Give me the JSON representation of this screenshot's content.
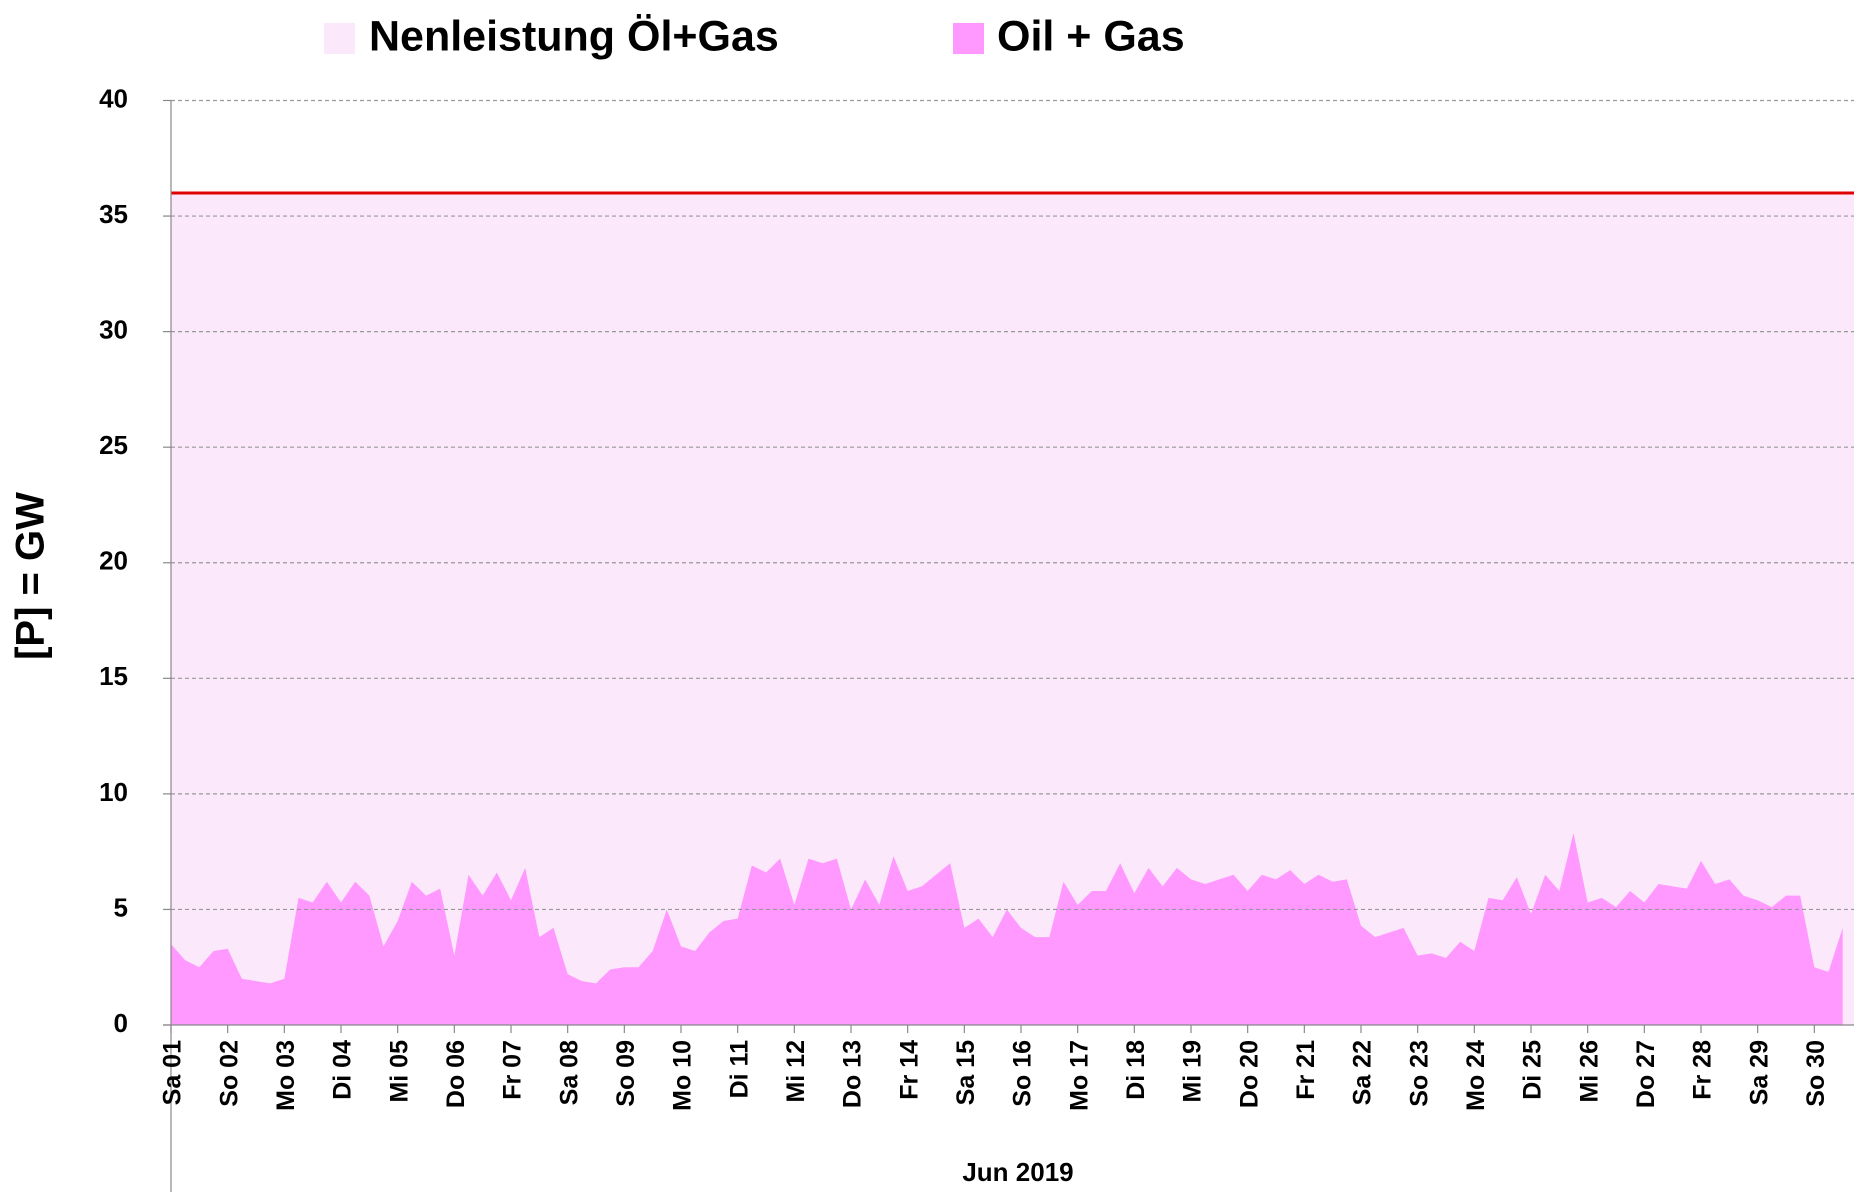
{
  "chart_data": {
    "type": "area",
    "x_label": "Jun 2019",
    "y_label": "[P]  = GW",
    "xlim": [
      0,
      29.7
    ],
    "ylim": [
      0,
      40
    ],
    "yticks": [
      0,
      5,
      10,
      15,
      20,
      25,
      30,
      35,
      40
    ],
    "xticks": [
      {
        "value": 0,
        "label": "Sa 01"
      },
      {
        "value": 1,
        "label": "So 02"
      },
      {
        "value": 2,
        "label": "Mo 03"
      },
      {
        "value": 3,
        "label": "Di 04"
      },
      {
        "value": 4,
        "label": "Mi 05"
      },
      {
        "value": 5,
        "label": "Do 06"
      },
      {
        "value": 6,
        "label": "Fr 07"
      },
      {
        "value": 7,
        "label": "Sa 08"
      },
      {
        "value": 8,
        "label": "So 09"
      },
      {
        "value": 9,
        "label": "Mo 10"
      },
      {
        "value": 10,
        "label": "Di 11"
      },
      {
        "value": 11,
        "label": "Mi 12"
      },
      {
        "value": 12,
        "label": "Do 13"
      },
      {
        "value": 13,
        "label": "Fr 14"
      },
      {
        "value": 14,
        "label": "Sa 15"
      },
      {
        "value": 15,
        "label": "So 16"
      },
      {
        "value": 16,
        "label": "Mo 17"
      },
      {
        "value": 17,
        "label": "Di 18"
      },
      {
        "value": 18,
        "label": "Mi 19"
      },
      {
        "value": 19,
        "label": "Do 20"
      },
      {
        "value": 20,
        "label": "Fr 21"
      },
      {
        "value": 21,
        "label": "Sa 22"
      },
      {
        "value": 22,
        "label": "So 23"
      },
      {
        "value": 23,
        "label": "Mo 24"
      },
      {
        "value": 24,
        "label": "Di 25"
      },
      {
        "value": 25,
        "label": "Mi 26"
      },
      {
        "value": 26,
        "label": "Do 27"
      },
      {
        "value": 27,
        "label": "Fr 28"
      },
      {
        "value": 28,
        "label": "Sa 29"
      },
      {
        "value": 29,
        "label": "So 30"
      }
    ],
    "grid": true,
    "x": [
      0,
      0.25,
      0.5,
      0.75,
      1,
      1.25,
      1.5,
      1.75,
      2,
      2.25,
      2.5,
      2.75,
      3,
      3.25,
      3.5,
      3.75,
      4,
      4.25,
      4.5,
      4.75,
      5,
      5.25,
      5.5,
      5.75,
      6,
      6.25,
      6.5,
      6.75,
      7,
      7.25,
      7.5,
      7.75,
      8,
      8.25,
      8.5,
      8.75,
      9,
      9.25,
      9.5,
      9.75,
      10,
      10.25,
      10.5,
      10.75,
      11,
      11.25,
      11.5,
      11.75,
      12,
      12.25,
      12.5,
      12.75,
      13,
      13.25,
      13.5,
      13.75,
      14,
      14.25,
      14.5,
      14.75,
      15,
      15.25,
      15.5,
      15.75,
      16,
      16.25,
      16.5,
      16.75,
      17,
      17.25,
      17.5,
      17.75,
      18,
      18.25,
      18.5,
      18.75,
      19,
      19.25,
      19.5,
      19.75,
      20,
      20.25,
      20.5,
      20.75,
      21,
      21.25,
      21.5,
      21.75,
      22,
      22.25,
      22.5,
      22.75,
      23,
      23.25,
      23.5,
      23.75,
      24,
      24.25,
      24.5,
      24.75,
      25,
      25.25,
      25.5,
      25.75,
      26,
      26.25,
      26.5,
      26.75,
      27,
      27.25,
      27.5,
      27.75,
      28,
      28.25,
      28.5,
      28.75,
      29,
      29.25,
      29.5
    ],
    "series": [
      {
        "name": "Nenleistung Öl+Gas",
        "color": "#fce8fb",
        "line_color": "#e00000",
        "x": [
          0,
          29.7
        ],
        "values": [
          36,
          36
        ]
      },
      {
        "name": "Oil + Gas",
        "color": "#ff99ff",
        "values": [
          3.5,
          2.8,
          2.5,
          3.2,
          3.3,
          2.0,
          1.9,
          1.8,
          2.0,
          5.5,
          5.3,
          6.2,
          5.3,
          6.2,
          5.6,
          3.4,
          4.5,
          6.2,
          5.6,
          5.9,
          3.0,
          6.5,
          5.6,
          6.6,
          5.4,
          6.8,
          3.8,
          4.2,
          2.2,
          1.9,
          1.8,
          2.4,
          2.5,
          2.5,
          3.2,
          5.0,
          3.4,
          3.2,
          4.0,
          4.5,
          4.6,
          6.9,
          6.6,
          7.2,
          5.2,
          7.2,
          7.0,
          7.2,
          5.0,
          6.3,
          5.2,
          7.3,
          5.8,
          6.0,
          6.5,
          7.0,
          4.2,
          4.6,
          3.8,
          5.0,
          4.2,
          3.8,
          3.8,
          6.2,
          5.2,
          5.8,
          5.8,
          7.0,
          5.7,
          6.8,
          6.0,
          6.8,
          6.3,
          6.1,
          6.3,
          6.5,
          5.8,
          6.5,
          6.3,
          6.7,
          6.1,
          6.5,
          6.2,
          6.3,
          4.3,
          3.8,
          4.0,
          4.2,
          3.0,
          3.1,
          2.9,
          3.6,
          3.2,
          5.5,
          5.4,
          6.4,
          4.8,
          6.5,
          5.8,
          8.3,
          5.3,
          5.5,
          5.1,
          5.8,
          5.3,
          6.1,
          6.0,
          5.9,
          7.1,
          6.1,
          6.3,
          5.6,
          5.4,
          5.1,
          5.6,
          5.6,
          2.5,
          2.3,
          4.2
        ]
      }
    ]
  }
}
